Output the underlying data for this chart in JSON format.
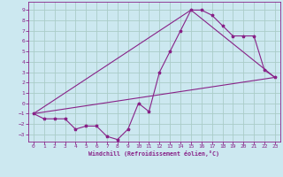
{
  "background_color": "#cce8f0",
  "grid_color": "#aaccc8",
  "line_color": "#882288",
  "marker_color": "#882288",
  "xlabel": "Windchill (Refroidissement éolien,°C)",
  "xlabel_color": "#882288",
  "tick_color": "#882288",
  "spine_color": "#882288",
  "xlim": [
    -0.5,
    23.5
  ],
  "ylim": [
    -3.7,
    9.8
  ],
  "yticks": [
    -3,
    -2,
    -1,
    0,
    1,
    2,
    3,
    4,
    5,
    6,
    7,
    8,
    9
  ],
  "xticks": [
    0,
    1,
    2,
    3,
    4,
    5,
    6,
    7,
    8,
    9,
    10,
    11,
    12,
    13,
    14,
    15,
    16,
    17,
    18,
    19,
    20,
    21,
    22,
    23
  ],
  "series1_x": [
    0,
    1,
    2,
    3,
    4,
    5,
    6,
    7,
    8,
    9,
    10,
    11,
    12,
    13,
    14,
    15,
    16,
    17,
    18,
    19,
    20,
    21,
    22,
    23
  ],
  "series1_y": [
    -1.0,
    -1.5,
    -1.5,
    -1.5,
    -2.5,
    -2.2,
    -2.2,
    -3.2,
    -3.5,
    -2.5,
    0.0,
    -0.8,
    3.0,
    5.0,
    7.0,
    9.0,
    9.0,
    8.5,
    7.5,
    6.5,
    6.5,
    6.5,
    3.2,
    2.5
  ],
  "series2_x": [
    0,
    23
  ],
  "series2_y": [
    -1.0,
    2.5
  ],
  "series3_x": [
    0,
    15,
    23
  ],
  "series3_y": [
    -1.0,
    9.0,
    2.5
  ]
}
